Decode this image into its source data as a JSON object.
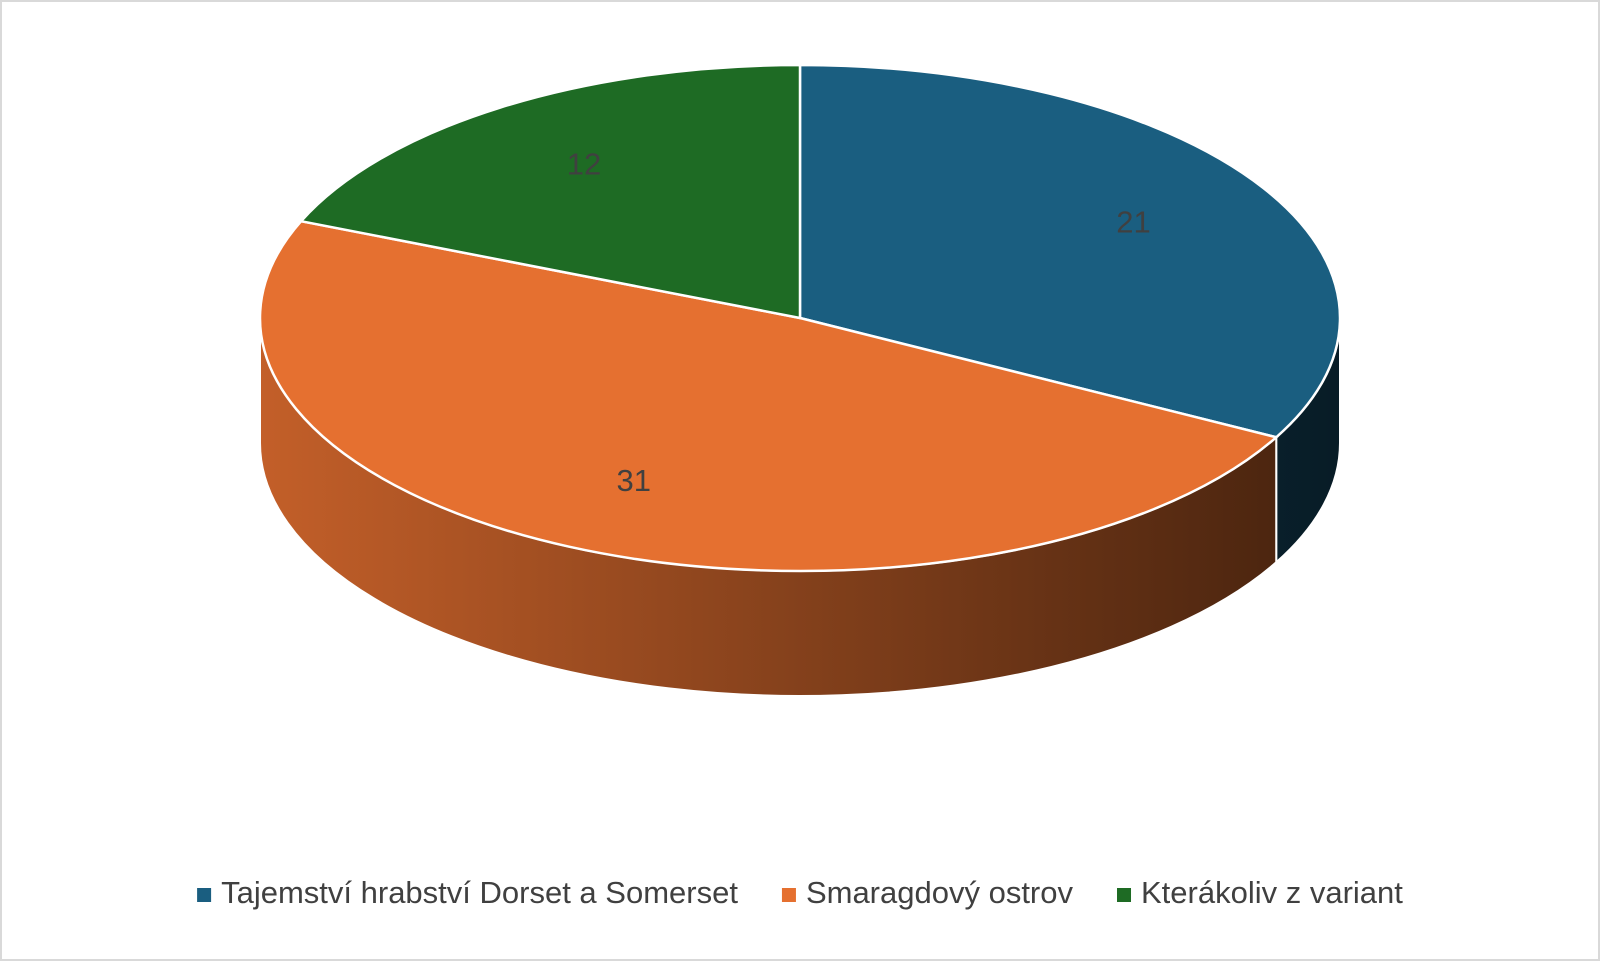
{
  "chart_data": {
    "type": "pie",
    "style": "3d",
    "categories": [
      "Tajemství hrabství Dorset a Somerset",
      "Smaragdový ostrov",
      "Kterákoliv z variant"
    ],
    "values": [
      21,
      31,
      12
    ],
    "colors": [
      "#1a5e80",
      "#e57030",
      "#1e6b24"
    ],
    "legend": "bottom"
  }
}
